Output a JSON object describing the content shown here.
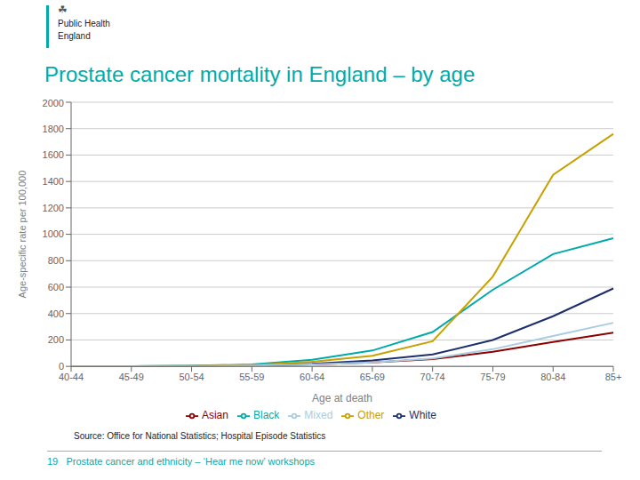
{
  "chart_data": {
    "type": "line",
    "title": "Prostate cancer mortality in England – by age",
    "x_label": "Age at death",
    "y_label": "Age-specific rate per 100,000",
    "categories": [
      "40-44",
      "45-49",
      "50-54",
      "55-59",
      "60-64",
      "65-69",
      "70-74",
      "75-79",
      "80-84",
      "85+"
    ],
    "series": [
      {
        "name": "Black",
        "color": "#00AAAA",
        "values": [
          1,
          2,
          4,
          15,
          50,
          120,
          260,
          580,
          850,
          970
        ]
      },
      {
        "name": "Asian",
        "color": "#8B0000",
        "values": [
          0,
          1,
          2,
          5,
          15,
          30,
          55,
          110,
          185,
          255
        ]
      },
      {
        "name": "White",
        "color": "#1C2E6B",
        "values": [
          1,
          2,
          3,
          8,
          20,
          45,
          90,
          200,
          380,
          590
        ]
      },
      {
        "name": "Other",
        "color": "#C8A000",
        "values": [
          0,
          1,
          3,
          10,
          35,
          80,
          190,
          680,
          1450,
          1760
        ]
      },
      {
        "name": "Mixed",
        "color": "#AACCE0",
        "values": [
          1,
          2,
          3,
          6,
          15,
          30,
          60,
          130,
          230,
          330
        ]
      }
    ],
    "ylim": [
      0,
      2000
    ],
    "yticks": [
      0,
      200,
      400,
      600,
      800,
      1000,
      1200,
      1400,
      1600,
      1800,
      2000
    ],
    "grid": true,
    "legend": "bottom",
    "annotations": [
      "☘",
      "Public Health\nEngland",
      "Source: Office for National Statistics; Hospital Episode Statistics",
      "19   Prostate cancer and ethnicity – ‘Hear me now’ workshops"
    ]
  }
}
